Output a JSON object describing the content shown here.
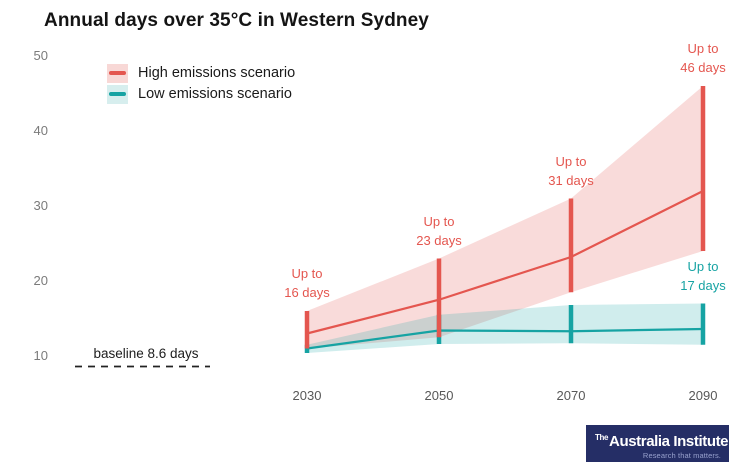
{
  "title": "Annual days over 35°C in Western Sydney",
  "legend": [
    {
      "label": "High emissions scenario"
    },
    {
      "label": "Low emissions scenario"
    }
  ],
  "colors": {
    "high": "#e4564f",
    "high_band": "#f8d8d6",
    "low": "#16a3a3",
    "low_band": "#d7eeee",
    "baseline": "#222222",
    "logo_bg": "#252e66"
  },
  "chart_data": {
    "type": "line",
    "title": "Annual days over 35°C in Western Sydney",
    "xlabel": "",
    "ylabel": "",
    "x": [
      2030,
      2050,
      2070,
      2090
    ],
    "xticks": [
      "2030",
      "2050",
      "2070",
      "2090"
    ],
    "yticks": [
      "10",
      "20",
      "30",
      "40",
      "50"
    ],
    "ylim": [
      7,
      50
    ],
    "grid": false,
    "legend_position": "top-left",
    "series": [
      {
        "name": "High emissions scenario",
        "key": "high",
        "mid": [
          13,
          17.5,
          23.2,
          32
        ],
        "upper": [
          16,
          23,
          31,
          46
        ],
        "lower": [
          11,
          12.5,
          18.5,
          24
        ]
      },
      {
        "name": "Low emissions scenario",
        "key": "low",
        "mid": [
          11,
          13.4,
          13.3,
          13.6
        ],
        "upper": [
          11.5,
          15.5,
          16.8,
          17
        ],
        "lower": [
          10.4,
          11.6,
          11.7,
          11.5
        ]
      }
    ],
    "baseline": {
      "value": 8.6,
      "label": "baseline 8.6 days"
    },
    "annotations": [
      {
        "x": 2030,
        "series": "high",
        "line1": "Up to",
        "line2": "16 days"
      },
      {
        "x": 2050,
        "series": "high",
        "line1": "Up to",
        "line2": "23 days"
      },
      {
        "x": 2070,
        "series": "high",
        "line1": "Up to",
        "line2": "31 days"
      },
      {
        "x": 2090,
        "series": "high",
        "line1": "Up to",
        "line2": "46 days"
      },
      {
        "x": 2090,
        "series": "low",
        "line1": "Up to",
        "line2": "17 days"
      }
    ]
  },
  "branding": {
    "prefix": "The",
    "name": "Australia Institute",
    "tagline": "Research that matters."
  }
}
